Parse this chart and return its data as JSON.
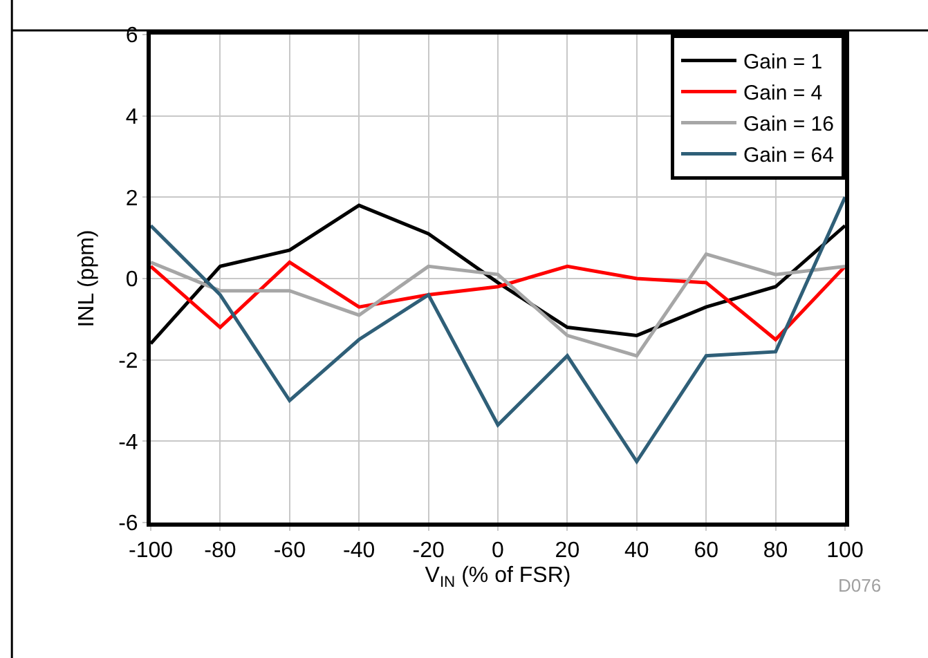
{
  "chart_data": {
    "type": "line",
    "xlabel": "V$_{IN}$ (% of FSR)",
    "ylabel": "INL (ppm)",
    "annotations": [
      "D076"
    ],
    "x": [
      -100,
      -80,
      -60,
      -40,
      -20,
      0,
      20,
      40,
      60,
      80,
      100
    ],
    "series": [
      {
        "name": "Gain = 1",
        "color": "#000000",
        "values": [
          -1.6,
          0.3,
          0.7,
          1.8,
          1.1,
          -0.1,
          -1.2,
          -1.4,
          -0.7,
          -0.2,
          1.3
        ]
      },
      {
        "name": "Gain = 4",
        "color": "#ff0000",
        "values": [
          0.3,
          -1.2,
          0.4,
          -0.7,
          -0.4,
          -0.2,
          0.3,
          0.0,
          -0.1,
          -1.5,
          0.3
        ]
      },
      {
        "name": "Gain = 16",
        "color": "#a6a6a6",
        "values": [
          0.4,
          -0.3,
          -0.3,
          -0.9,
          0.3,
          0.1,
          -1.4,
          -1.9,
          0.6,
          0.1,
          0.3
        ]
      },
      {
        "name": "Gain = 64",
        "color": "#2f5f78",
        "values": [
          1.3,
          -0.4,
          -3.0,
          -1.5,
          -0.4,
          -3.6,
          -1.9,
          -4.5,
          -1.9,
          -1.8,
          2.0
        ]
      }
    ],
    "xlim": [
      -100,
      100
    ],
    "xticks": [
      -100,
      -80,
      -60,
      -40,
      -20,
      0,
      20,
      40,
      60,
      80,
      100
    ],
    "ylim": [
      -6,
      6
    ],
    "yticks": [
      -6,
      -4,
      -2,
      0,
      2,
      4,
      6
    ],
    "grid": true,
    "legend": "top right",
    "marker": "none",
    "line_style": "solid"
  }
}
